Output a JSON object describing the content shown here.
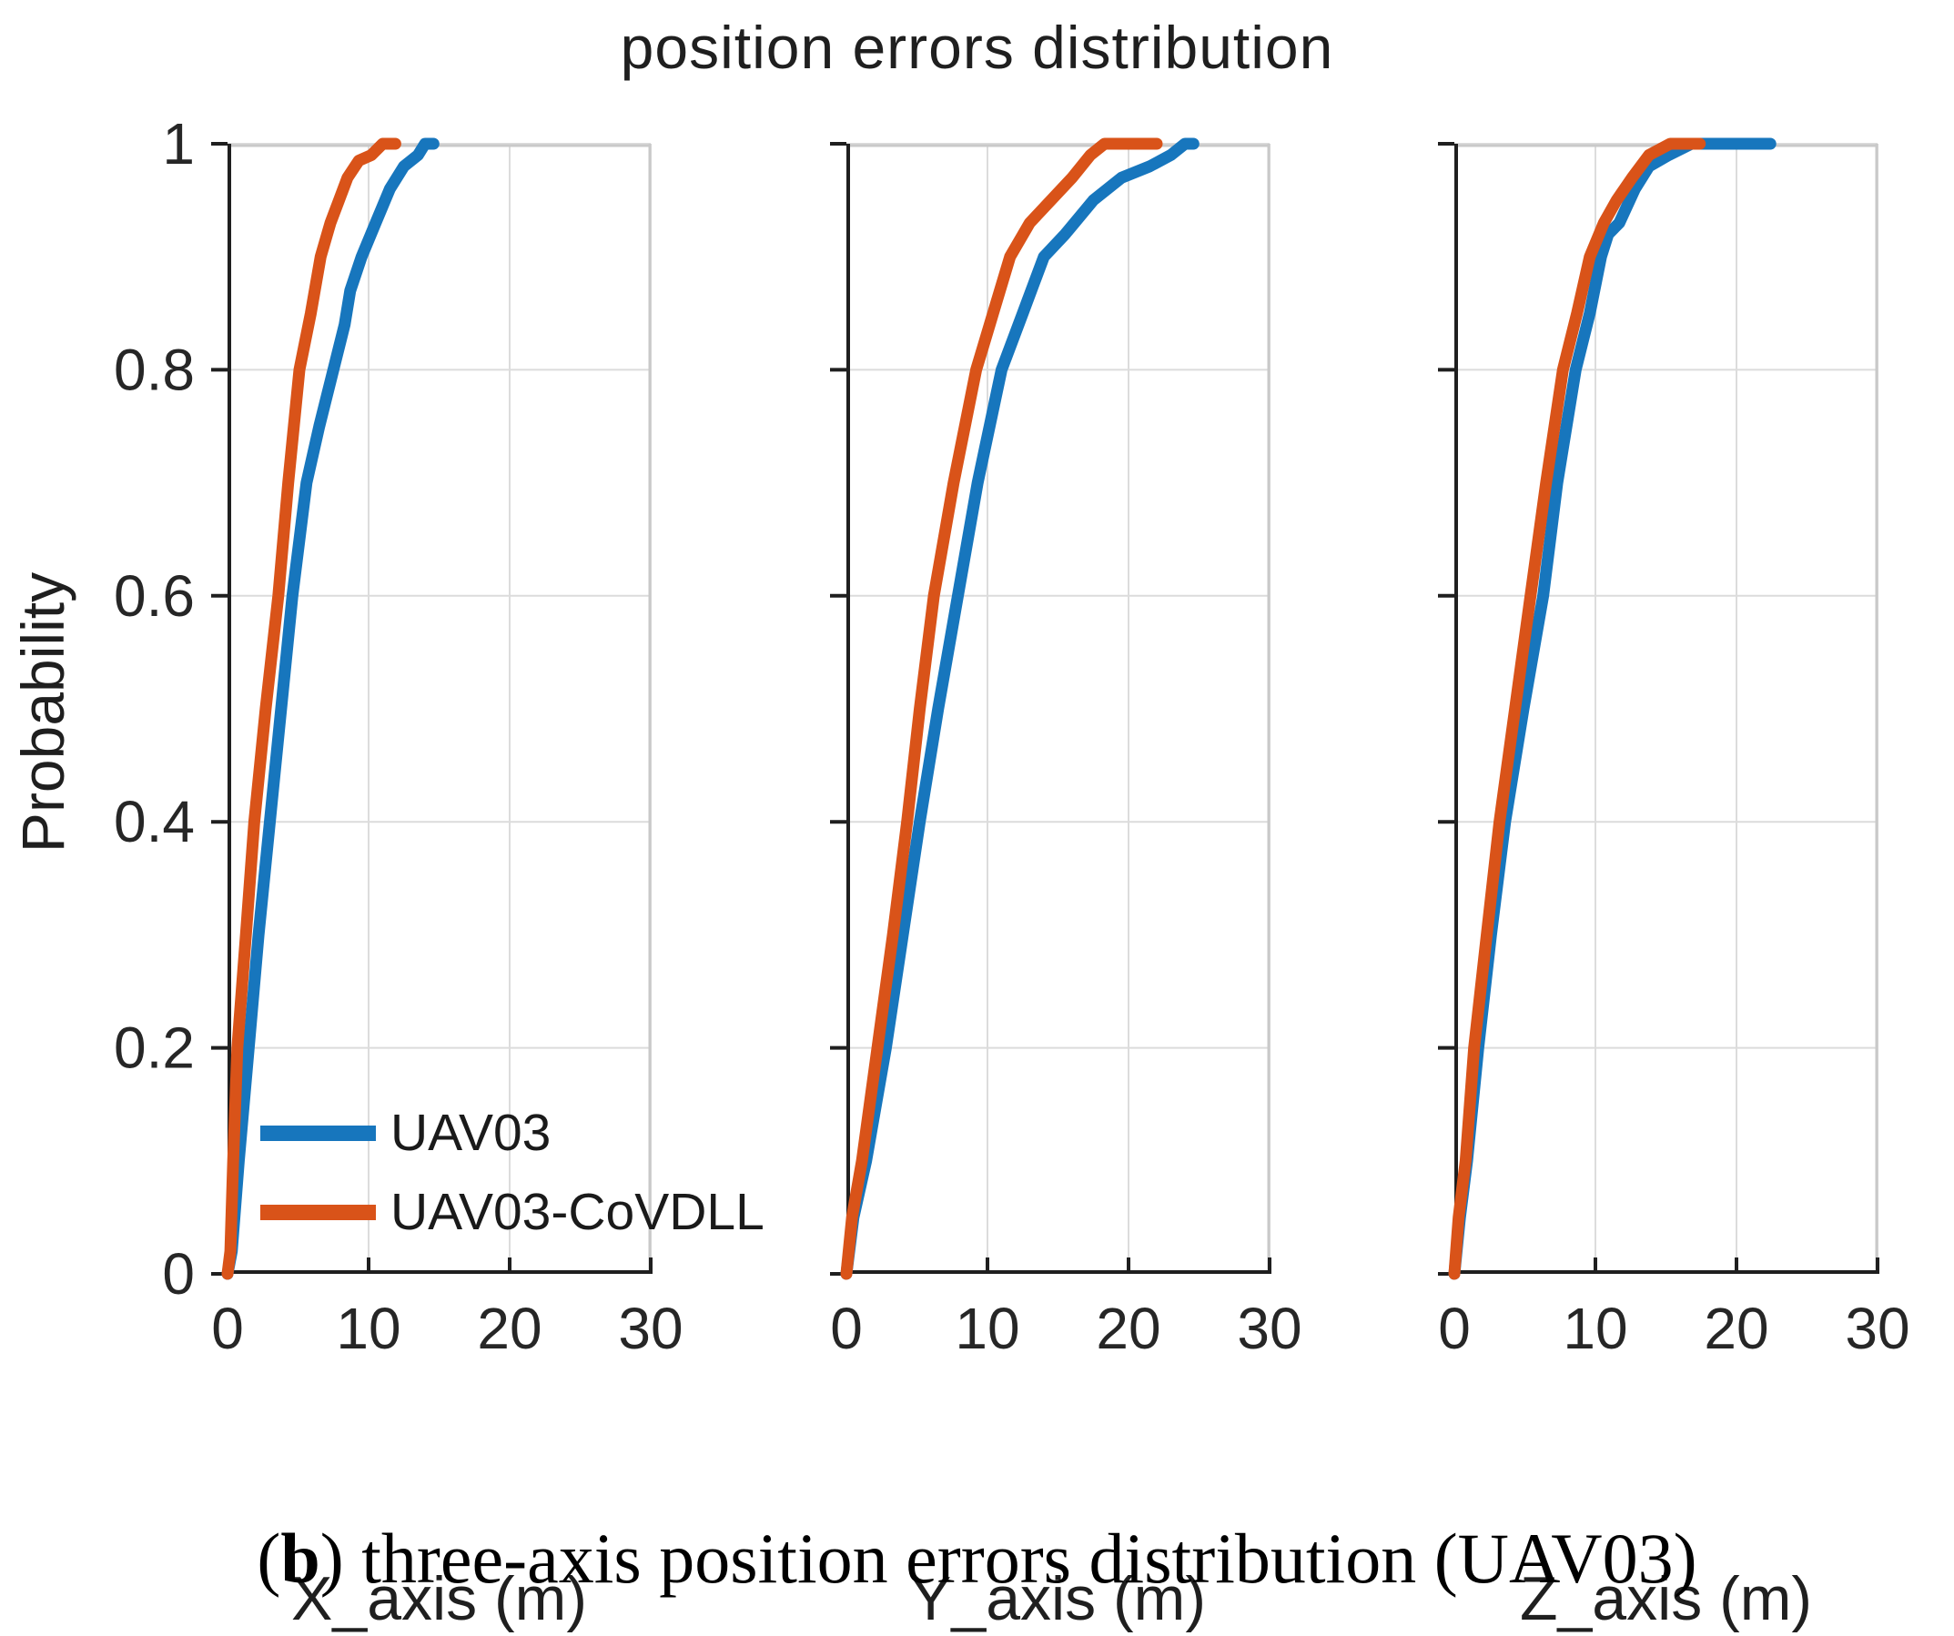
{
  "title": "position errors distribution",
  "caption": {
    "open": "(",
    "marker": "b",
    "rest": ") three-axis position errors distribution (UAV03)"
  },
  "colors": {
    "uav03": "#1776bd",
    "uav03_covdll": "#d95319",
    "grid": "#dcdcdc",
    "box_light": "#c9c9c9",
    "axis_dark": "#1f1f1f",
    "tick_text": "#262626"
  },
  "chart_data": {
    "type": "line",
    "title": "position errors distribution",
    "ylabel": "Probability",
    "xlim": [
      0,
      30
    ],
    "ylim": [
      0,
      1
    ],
    "xticks": [
      0,
      10,
      20,
      30
    ],
    "xtick_labels": [
      "0",
      "10",
      "20",
      "30"
    ],
    "yticks": [
      0,
      0.2,
      0.4,
      0.6,
      0.8,
      1
    ],
    "ytick_labels": [
      "0",
      "0.2",
      "0.4",
      "0.6",
      "0.8",
      "1"
    ],
    "grid": true,
    "legend_position": "lower left of first subplot",
    "legend": [
      "UAV03",
      "UAV03-CoVDLL"
    ],
    "subplots": [
      {
        "xlabel": "X_axis (m)",
        "show_yticklabels": true,
        "series": [
          {
            "name": "UAV03",
            "color": "#1776bd",
            "points": [
              [
                0,
                0
              ],
              [
                0.3,
                0.02
              ],
              [
                0.8,
                0.1
              ],
              [
                1.5,
                0.2
              ],
              [
                2.2,
                0.3
              ],
              [
                3.0,
                0.4
              ],
              [
                3.8,
                0.5
              ],
              [
                4.6,
                0.6
              ],
              [
                5.6,
                0.7
              ],
              [
                6.5,
                0.75
              ],
              [
                7.5,
                0.8
              ],
              [
                8.3,
                0.84
              ],
              [
                8.7,
                0.87
              ],
              [
                9.5,
                0.9
              ],
              [
                10.5,
                0.93
              ],
              [
                11.5,
                0.96
              ],
              [
                12.5,
                0.98
              ],
              [
                13.5,
                0.99
              ],
              [
                14.0,
                1.0
              ],
              [
                14.6,
                1.0
              ]
            ]
          },
          {
            "name": "UAV03-CoVDLL",
            "color": "#d95319",
            "points": [
              [
                0,
                0
              ],
              [
                0.2,
                0.02
              ],
              [
                0.4,
                0.1
              ],
              [
                0.7,
                0.2
              ],
              [
                1.3,
                0.3
              ],
              [
                1.9,
                0.4
              ],
              [
                2.7,
                0.5
              ],
              [
                3.6,
                0.6
              ],
              [
                4.3,
                0.7
              ],
              [
                5.1,
                0.8
              ],
              [
                5.9,
                0.85
              ],
              [
                6.6,
                0.9
              ],
              [
                7.3,
                0.93
              ],
              [
                7.9,
                0.95
              ],
              [
                8.5,
                0.97
              ],
              [
                9.3,
                0.985
              ],
              [
                10.2,
                0.99
              ],
              [
                11.0,
                1.0
              ],
              [
                11.9,
                1.0
              ]
            ]
          }
        ]
      },
      {
        "xlabel": "Y_axis (m)",
        "show_yticklabels": false,
        "series": [
          {
            "name": "UAV03",
            "color": "#1776bd",
            "points": [
              [
                0,
                0
              ],
              [
                0.5,
                0.05
              ],
              [
                1.4,
                0.1
              ],
              [
                2.8,
                0.2
              ],
              [
                4.0,
                0.3
              ],
              [
                5.2,
                0.4
              ],
              [
                6.5,
                0.5
              ],
              [
                7.9,
                0.6
              ],
              [
                9.3,
                0.7
              ],
              [
                11.0,
                0.8
              ],
              [
                12.5,
                0.85
              ],
              [
                14.0,
                0.9
              ],
              [
                15.5,
                0.92
              ],
              [
                17.5,
                0.95
              ],
              [
                19.5,
                0.97
              ],
              [
                21.5,
                0.98
              ],
              [
                23.0,
                0.99
              ],
              [
                24.0,
                1.0
              ],
              [
                24.6,
                1.0
              ]
            ]
          },
          {
            "name": "UAV03-CoVDLL",
            "color": "#d95319",
            "points": [
              [
                0,
                0
              ],
              [
                0.4,
                0.05
              ],
              [
                1.1,
                0.1
              ],
              [
                2.2,
                0.2
              ],
              [
                3.3,
                0.3
              ],
              [
                4.3,
                0.4
              ],
              [
                5.2,
                0.5
              ],
              [
                6.2,
                0.6
              ],
              [
                7.6,
                0.7
              ],
              [
                9.2,
                0.8
              ],
              [
                10.4,
                0.85
              ],
              [
                11.6,
                0.9
              ],
              [
                13.0,
                0.93
              ],
              [
                14.5,
                0.95
              ],
              [
                16.0,
                0.97
              ],
              [
                17.3,
                0.99
              ],
              [
                18.3,
                1.0
              ],
              [
                22.0,
                1.0
              ]
            ]
          }
        ]
      },
      {
        "xlabel": "Z_axis (m)",
        "show_yticklabels": false,
        "series": [
          {
            "name": "UAV03",
            "color": "#1776bd",
            "points": [
              [
                0,
                0
              ],
              [
                0.4,
                0.05
              ],
              [
                0.9,
                0.1
              ],
              [
                1.7,
                0.2
              ],
              [
                2.6,
                0.3
              ],
              [
                3.6,
                0.4
              ],
              [
                4.9,
                0.5
              ],
              [
                6.3,
                0.6
              ],
              [
                7.3,
                0.7
              ],
              [
                8.6,
                0.8
              ],
              [
                9.6,
                0.85
              ],
              [
                10.4,
                0.9
              ],
              [
                10.9,
                0.92
              ],
              [
                11.7,
                0.93
              ],
              [
                12.8,
                0.96
              ],
              [
                13.8,
                0.98
              ],
              [
                15.2,
                0.99
              ],
              [
                16.8,
                1.0
              ],
              [
                20.5,
                1.0
              ],
              [
                21.0,
                1.0
              ],
              [
                22.4,
                1.0
              ]
            ]
          },
          {
            "name": "UAV03-CoVDLL",
            "color": "#d95319",
            "points": [
              [
                0,
                0
              ],
              [
                0.3,
                0.05
              ],
              [
                0.8,
                0.1
              ],
              [
                1.4,
                0.2
              ],
              [
                2.3,
                0.3
              ],
              [
                3.2,
                0.4
              ],
              [
                4.3,
                0.5
              ],
              [
                5.4,
                0.6
              ],
              [
                6.5,
                0.7
              ],
              [
                7.7,
                0.8
              ],
              [
                8.7,
                0.85
              ],
              [
                9.6,
                0.9
              ],
              [
                10.6,
                0.93
              ],
              [
                11.5,
                0.95
              ],
              [
                12.6,
                0.97
              ],
              [
                13.8,
                0.99
              ],
              [
                15.3,
                1.0
              ],
              [
                17.4,
                1.0
              ]
            ]
          }
        ]
      }
    ]
  }
}
